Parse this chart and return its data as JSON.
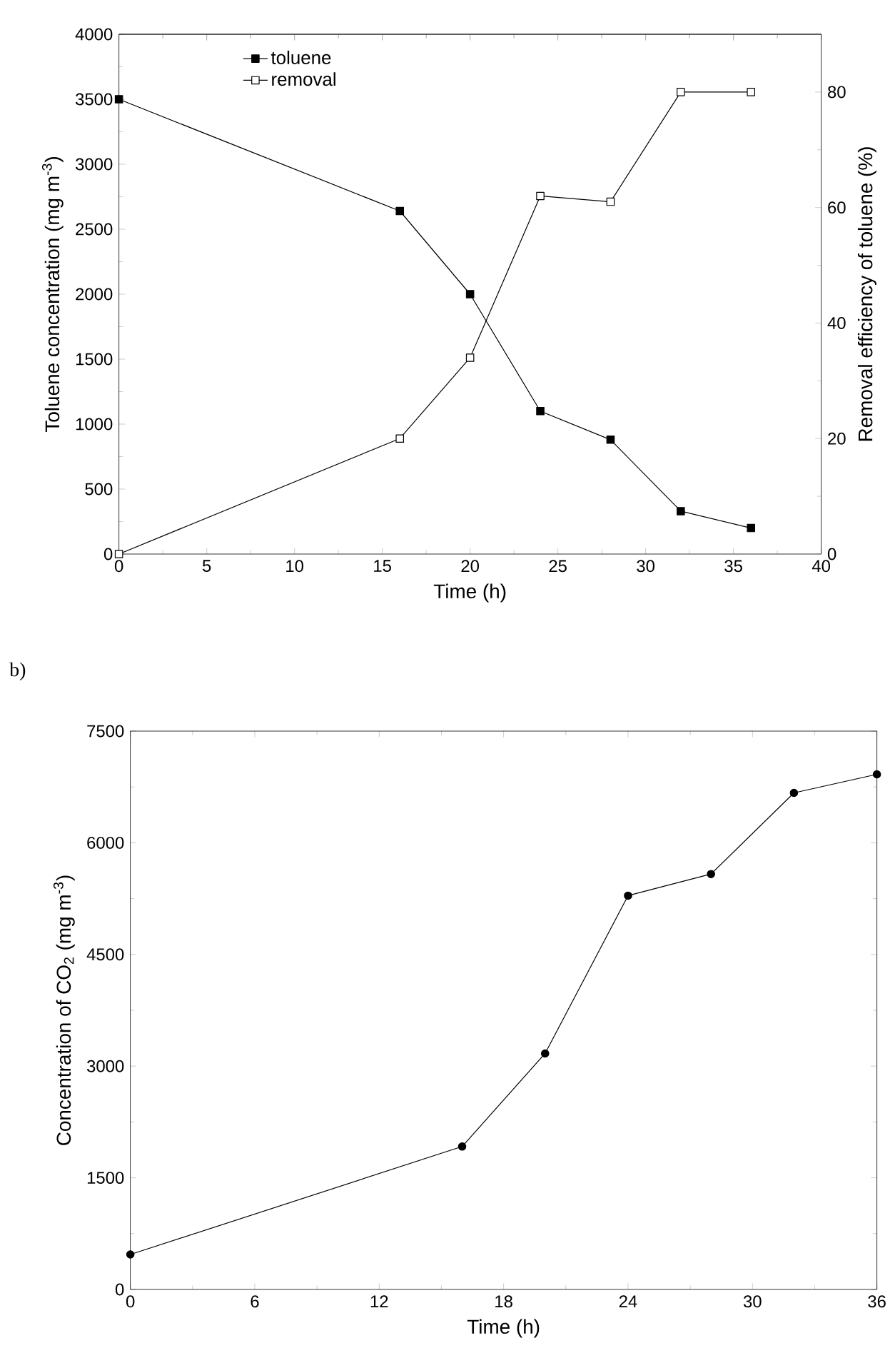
{
  "chart_data": [
    {
      "type": "line",
      "xlabel": "Time (h)",
      "ylabel": "Toluene concentration (mg m$^{-3}$)",
      "y2label": "Removal efficiency of toluene (%)",
      "x": [
        0,
        16,
        20,
        24,
        28,
        32,
        36
      ],
      "series": [
        {
          "name": "toluene",
          "color": "#000000",
          "marker": "square",
          "values": [
            3500,
            2640,
            2000,
            1100,
            880,
            330,
            200
          ]
        },
        {
          "name": "removal",
          "color": "#000000",
          "marker": "square",
          "axis": "y2",
          "values": [
            0,
            20,
            34,
            62,
            61,
            80,
            80
          ]
        }
      ],
      "xlim": [
        0,
        40
      ],
      "xticks": [
        0,
        5,
        10,
        15,
        20,
        25,
        30,
        35,
        40
      ],
      "ylim": [
        0,
        4000
      ],
      "yticks": [
        0,
        500,
        1000,
        1500,
        2000,
        2500,
        3000,
        3500,
        4000
      ],
      "y2lim": [
        0,
        90
      ],
      "y2ticks": [
        0,
        20,
        40,
        60,
        80
      ],
      "legend": "top left"
    },
    {
      "type": "line",
      "xlabel": "Time (h)",
      "ylabel": "Concentration of CO$_{2}$ (mg m$^{-3}$)",
      "annotations": [
        "b)"
      ],
      "x": [
        0,
        16,
        20,
        24,
        28,
        32,
        36
      ],
      "series": [
        {
          "color": "#000000",
          "marker": "circle",
          "values": [
            470,
            1920,
            3170,
            5290,
            5580,
            6670,
            6920
          ]
        }
      ],
      "xlim": [
        0,
        36
      ],
      "xticks": [
        0,
        6,
        12,
        18,
        24,
        30,
        36
      ],
      "ylim": [
        0,
        7500
      ],
      "yticks": [
        0,
        1500,
        3000,
        4500,
        6000,
        7500
      ]
    }
  ]
}
